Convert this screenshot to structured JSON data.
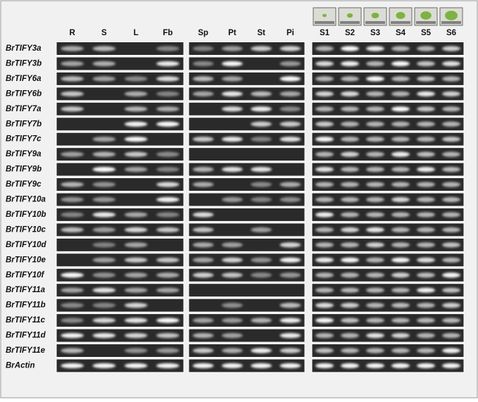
{
  "panels": [
    {
      "lanes": [
        "R",
        "S",
        "L",
        "Fb"
      ]
    },
    {
      "lanes": [
        "Sp",
        "Pt",
        "St",
        "Pi"
      ]
    },
    {
      "lanes": [
        "S1",
        "S2",
        "S3",
        "S4",
        "S5",
        "S6"
      ]
    }
  ],
  "genes": [
    "BrTIFY3a",
    "BrTIFY3b",
    "BrTIFY6a",
    "BrTIFY6b",
    "BrTIFY7a",
    "BrTIFY7b",
    "BrTIFY7c",
    "BrTIFY9a",
    "BrTIFY9b",
    "BrTIFY9c",
    "BrTIFY10a",
    "BrTIFY10b",
    "BrTIFY10c",
    "BrTIFY10d",
    "BrTIFY10e",
    "BrTIFY10f",
    "BrTIFY11a",
    "BrTIFY11b",
    "BrTIFY11c",
    "BrTIFY11d",
    "BrTIFY11e",
    "BrActin"
  ]
}
